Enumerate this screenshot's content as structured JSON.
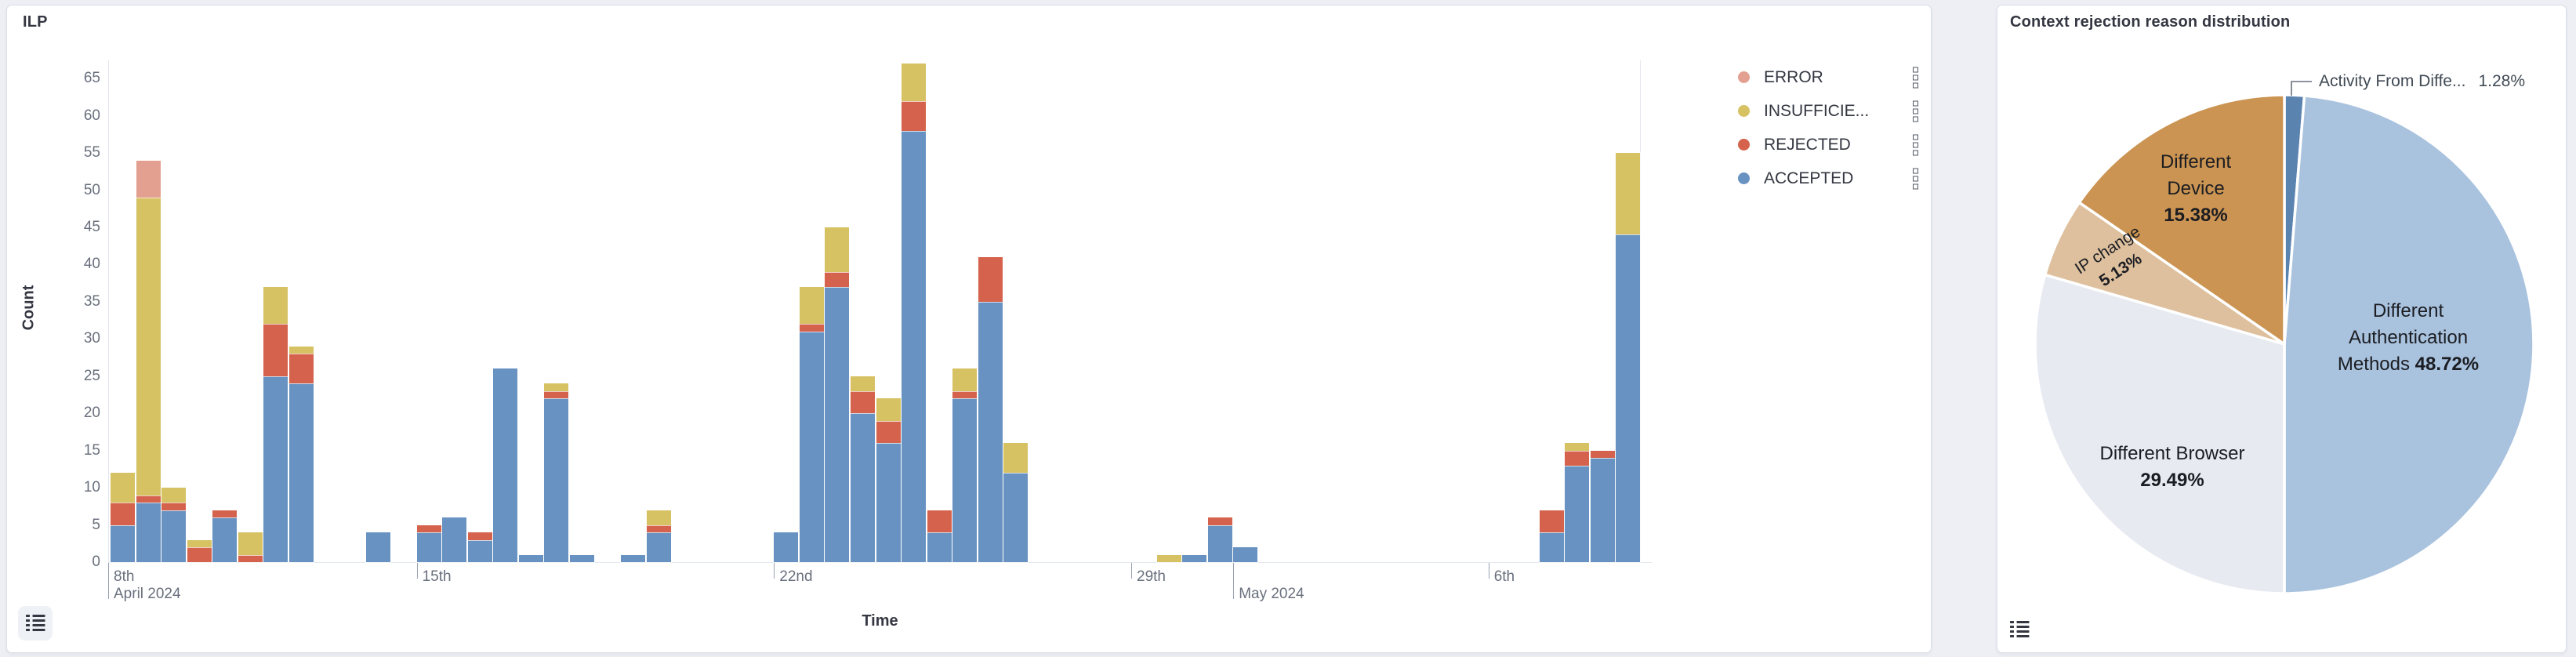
{
  "page": {
    "background": "#edeff4"
  },
  "left_panel": {
    "title": "ILP",
    "y_axis": {
      "label": "Count",
      "ticks": [
        0,
        5,
        10,
        15,
        20,
        25,
        30,
        35,
        40,
        45,
        50,
        55,
        60,
        65
      ]
    },
    "x_axis": {
      "label": "Time",
      "ticks": [
        {
          "day": 0,
          "label": "8th",
          "month_label": "April 2024",
          "tall": true
        },
        {
          "day": 7,
          "label": "15th"
        },
        {
          "day": 14,
          "label": "22nd"
        },
        {
          "day": 21,
          "label": "29th"
        },
        {
          "day": 23,
          "month_label": "May 2024",
          "tall": true
        },
        {
          "day": 28,
          "label": "6th"
        }
      ]
    },
    "legend": [
      {
        "label": "ERROR",
        "series": "error"
      },
      {
        "label": "INSUFFICIE...",
        "series": "insufficient"
      },
      {
        "label": "REJECTED",
        "series": "rejected"
      },
      {
        "label": "ACCEPTED",
        "series": "accepted"
      }
    ]
  },
  "right_panel": {
    "title": "Context rejection reason distribution",
    "callout": {
      "label": "Activity From Diffe...",
      "pct": "1.28%"
    }
  },
  "chart_data": [
    {
      "type": "bar",
      "stacked": true,
      "title": "ILP",
      "xlabel": "Time",
      "ylabel": "Count",
      "ylim": [
        0,
        65
      ],
      "bin_hours": 12,
      "first_bin_start": "2024-04-09 00:00",
      "series_order": [
        "accepted",
        "rejected",
        "insufficient",
        "error"
      ],
      "colors": {
        "accepted": "#6892C1",
        "rejected": "#D5624C",
        "insufficient": "#D6C163",
        "error": "#E3A090"
      },
      "bars": [
        {
          "k": 0,
          "accepted": 5,
          "rejected": 3,
          "insufficient": 4
        },
        {
          "k": 1,
          "accepted": 8,
          "rejected": 1,
          "insufficient": 40,
          "error": 5
        },
        {
          "k": 2,
          "accepted": 7,
          "rejected": 1,
          "insufficient": 2
        },
        {
          "k": 3,
          "rejected": 2,
          "insufficient": 1
        },
        {
          "k": 4,
          "accepted": 6,
          "rejected": 1
        },
        {
          "k": 5,
          "rejected": 1,
          "insufficient": 3
        },
        {
          "k": 6,
          "accepted": 25,
          "rejected": 7,
          "insufficient": 5
        },
        {
          "k": 7,
          "accepted": 24,
          "rejected": 4,
          "insufficient": 1
        },
        {
          "k": 10,
          "accepted": 4
        },
        {
          "k": 12,
          "accepted": 4,
          "rejected": 1
        },
        {
          "k": 13,
          "accepted": 6
        },
        {
          "k": 14,
          "accepted": 3,
          "rejected": 1
        },
        {
          "k": 15,
          "accepted": 26
        },
        {
          "k": 16,
          "accepted": 1
        },
        {
          "k": 17,
          "accepted": 22,
          "rejected": 1,
          "insufficient": 1
        },
        {
          "k": 18,
          "accepted": 1
        },
        {
          "k": 20,
          "accepted": 1
        },
        {
          "k": 21,
          "accepted": 4,
          "rejected": 1,
          "insufficient": 2
        },
        {
          "k": 26,
          "accepted": 4
        },
        {
          "k": 27,
          "accepted": 31,
          "rejected": 1,
          "insufficient": 5
        },
        {
          "k": 28,
          "accepted": 37,
          "rejected": 2,
          "insufficient": 6
        },
        {
          "k": 29,
          "accepted": 20,
          "rejected": 3,
          "insufficient": 2
        },
        {
          "k": 30,
          "accepted": 16,
          "rejected": 3,
          "insufficient": 3
        },
        {
          "k": 31,
          "accepted": 58,
          "rejected": 4,
          "insufficient": 5
        },
        {
          "k": 32,
          "accepted": 4,
          "rejected": 3
        },
        {
          "k": 33,
          "accepted": 22,
          "rejected": 1,
          "insufficient": 3
        },
        {
          "k": 34,
          "accepted": 35,
          "rejected": 6
        },
        {
          "k": 35,
          "accepted": 12,
          "insufficient": 4
        },
        {
          "k": 41,
          "insufficient": 1
        },
        {
          "k": 42,
          "accepted": 1
        },
        {
          "k": 43,
          "accepted": 5,
          "rejected": 1
        },
        {
          "k": 44,
          "accepted": 2
        },
        {
          "k": 56,
          "accepted": 4,
          "rejected": 3
        },
        {
          "k": 57,
          "accepted": 13,
          "rejected": 2,
          "insufficient": 1
        },
        {
          "k": 58,
          "accepted": 14,
          "rejected": 1
        },
        {
          "k": 59,
          "accepted": 44,
          "insufficient": 11
        }
      ]
    },
    {
      "type": "pie",
      "title": "Context rejection reason distribution",
      "slices": [
        {
          "name": "Activity From Diffe...",
          "pct": "1.28%",
          "value": 1.28,
          "color": "#5B83B0",
          "callout": true
        },
        {
          "name": "Different Authentication Methods",
          "label_lines": [
            "Different",
            "Authentication",
            "Methods"
          ],
          "pct": "48.72%",
          "value": 48.72,
          "color": "#A9C2DE",
          "pct_inline": true
        },
        {
          "name": "Different Browser",
          "label_lines": [
            "Different Browser"
          ],
          "pct": "29.49%",
          "value": 29.49,
          "color": "#E7EBF1"
        },
        {
          "name": "IP change",
          "label_lines": [
            "IP change"
          ],
          "pct": "5.13%",
          "value": 5.13,
          "color": "#DEC09E"
        },
        {
          "name": "Different Device",
          "label_lines": [
            "Different",
            "Device"
          ],
          "pct": "15.38%",
          "value": 15.38,
          "color": "#CB9452"
        }
      ]
    }
  ]
}
